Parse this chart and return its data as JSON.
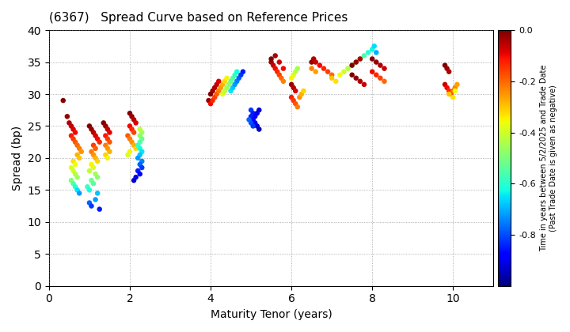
{
  "title": "(6367)   Spread Curve based on Reference Prices",
  "xlabel": "Maturity Tenor (years)",
  "ylabel": "Spread (bp)",
  "colorbar_label_line1": "Time in years between 5/2/2025 and Trade Date",
  "colorbar_label_line2": "(Past Trade Date is given as negative)",
  "xlim": [
    0,
    11
  ],
  "ylim": [
    0,
    40
  ],
  "xticks": [
    0,
    2,
    4,
    6,
    8,
    10
  ],
  "yticks": [
    0,
    5,
    10,
    15,
    20,
    25,
    30,
    35,
    40
  ],
  "cmap": "jet",
  "vmin": -1.0,
  "vmax": 0.0,
  "points": [
    [
      0.35,
      29.0,
      0.0
    ],
    [
      0.45,
      26.5,
      -0.02
    ],
    [
      0.5,
      25.5,
      -0.04
    ],
    [
      0.55,
      25.0,
      -0.06
    ],
    [
      0.6,
      24.5,
      -0.08
    ],
    [
      0.65,
      24.0,
      -0.1
    ],
    [
      0.55,
      23.5,
      -0.12
    ],
    [
      0.6,
      23.0,
      -0.15
    ],
    [
      0.65,
      22.5,
      -0.18
    ],
    [
      0.7,
      22.0,
      -0.2
    ],
    [
      0.75,
      21.5,
      -0.22
    ],
    [
      0.8,
      21.0,
      -0.25
    ],
    [
      0.7,
      20.5,
      -0.28
    ],
    [
      0.75,
      20.0,
      -0.3
    ],
    [
      0.6,
      19.5,
      -0.33
    ],
    [
      0.65,
      19.0,
      -0.36
    ],
    [
      0.55,
      18.5,
      -0.38
    ],
    [
      0.6,
      18.0,
      -0.4
    ],
    [
      0.65,
      17.5,
      -0.43
    ],
    [
      0.7,
      17.0,
      -0.46
    ],
    [
      0.55,
      16.5,
      -0.5
    ],
    [
      0.6,
      16.0,
      -0.55
    ],
    [
      0.65,
      15.5,
      -0.6
    ],
    [
      0.7,
      15.0,
      -0.65
    ],
    [
      0.75,
      14.5,
      -0.72
    ],
    [
      1.0,
      25.0,
      -0.0
    ],
    [
      1.05,
      24.5,
      -0.02
    ],
    [
      1.1,
      24.0,
      -0.05
    ],
    [
      1.15,
      23.5,
      -0.08
    ],
    [
      1.2,
      23.0,
      -0.1
    ],
    [
      1.25,
      22.5,
      -0.13
    ],
    [
      1.1,
      22.0,
      -0.16
    ],
    [
      1.15,
      21.5,
      -0.19
    ],
    [
      1.05,
      21.0,
      -0.22
    ],
    [
      1.1,
      20.5,
      -0.25
    ],
    [
      1.15,
      20.0,
      -0.28
    ],
    [
      1.2,
      19.5,
      -0.32
    ],
    [
      1.05,
      19.0,
      -0.35
    ],
    [
      1.1,
      18.5,
      -0.38
    ],
    [
      1.0,
      18.0,
      -0.42
    ],
    [
      1.15,
      17.5,
      -0.45
    ],
    [
      1.2,
      17.0,
      -0.48
    ],
    [
      1.05,
      16.5,
      -0.52
    ],
    [
      1.1,
      16.0,
      -0.55
    ],
    [
      0.95,
      15.5,
      -0.58
    ],
    [
      1.0,
      15.0,
      -0.62
    ],
    [
      1.2,
      14.5,
      -0.68
    ],
    [
      1.15,
      13.5,
      -0.72
    ],
    [
      1.0,
      13.0,
      -0.78
    ],
    [
      1.05,
      12.5,
      -0.82
    ],
    [
      1.25,
      12.0,
      -0.85
    ],
    [
      1.35,
      25.5,
      -0.0
    ],
    [
      1.4,
      25.0,
      -0.03
    ],
    [
      1.45,
      24.5,
      -0.06
    ],
    [
      1.5,
      24.0,
      -0.09
    ],
    [
      1.4,
      23.5,
      -0.12
    ],
    [
      1.45,
      23.0,
      -0.15
    ],
    [
      1.5,
      22.5,
      -0.18
    ],
    [
      1.4,
      22.0,
      -0.22
    ],
    [
      1.45,
      21.5,
      -0.25
    ],
    [
      1.5,
      21.0,
      -0.28
    ],
    [
      1.4,
      20.5,
      -0.32
    ],
    [
      1.45,
      20.0,
      -0.35
    ],
    [
      2.0,
      27.0,
      -0.0
    ],
    [
      2.05,
      26.5,
      -0.02
    ],
    [
      2.1,
      26.0,
      -0.05
    ],
    [
      2.15,
      25.5,
      -0.08
    ],
    [
      2.0,
      25.0,
      -0.1
    ],
    [
      2.05,
      24.5,
      -0.13
    ],
    [
      2.1,
      24.0,
      -0.16
    ],
    [
      1.95,
      23.5,
      -0.19
    ],
    [
      2.0,
      23.0,
      -0.22
    ],
    [
      2.05,
      22.5,
      -0.25
    ],
    [
      2.1,
      22.0,
      -0.28
    ],
    [
      2.15,
      21.5,
      -0.32
    ],
    [
      2.0,
      21.0,
      -0.35
    ],
    [
      1.95,
      20.5,
      -0.38
    ],
    [
      2.25,
      24.5,
      -0.42
    ],
    [
      2.3,
      24.0,
      -0.45
    ],
    [
      2.25,
      23.5,
      -0.48
    ],
    [
      2.3,
      23.0,
      -0.52
    ],
    [
      2.25,
      22.5,
      -0.55
    ],
    [
      2.2,
      22.0,
      -0.58
    ],
    [
      2.25,
      21.5,
      -0.62
    ],
    [
      2.3,
      21.0,
      -0.65
    ],
    [
      2.25,
      20.5,
      -0.68
    ],
    [
      2.2,
      20.0,
      -0.72
    ],
    [
      2.3,
      19.5,
      -0.75
    ],
    [
      2.25,
      19.0,
      -0.78
    ],
    [
      2.3,
      18.5,
      -0.82
    ],
    [
      2.2,
      18.0,
      -0.85
    ],
    [
      2.25,
      17.5,
      -0.88
    ],
    [
      2.15,
      17.0,
      -0.9
    ],
    [
      2.1,
      16.5,
      -0.93
    ],
    [
      3.95,
      29.0,
      -0.02
    ],
    [
      4.0,
      30.0,
      -0.0
    ],
    [
      4.05,
      30.5,
      -0.02
    ],
    [
      4.1,
      31.0,
      -0.04
    ],
    [
      4.15,
      31.5,
      -0.06
    ],
    [
      4.2,
      32.0,
      -0.08
    ],
    [
      4.0,
      28.5,
      -0.1
    ],
    [
      4.05,
      29.0,
      -0.13
    ],
    [
      4.1,
      29.5,
      -0.16
    ],
    [
      4.15,
      30.0,
      -0.19
    ],
    [
      4.2,
      30.5,
      -0.22
    ],
    [
      4.25,
      31.0,
      -0.25
    ],
    [
      4.3,
      31.5,
      -0.28
    ],
    [
      4.35,
      32.0,
      -0.32
    ],
    [
      4.4,
      32.5,
      -0.35
    ],
    [
      4.3,
      30.0,
      -0.38
    ],
    [
      4.35,
      30.5,
      -0.42
    ],
    [
      4.4,
      31.0,
      -0.45
    ],
    [
      4.45,
      31.5,
      -0.48
    ],
    [
      4.5,
      32.0,
      -0.52
    ],
    [
      4.55,
      32.5,
      -0.55
    ],
    [
      4.6,
      33.0,
      -0.58
    ],
    [
      4.65,
      33.5,
      -0.62
    ],
    [
      4.5,
      30.5,
      -0.65
    ],
    [
      4.55,
      31.0,
      -0.68
    ],
    [
      4.6,
      31.5,
      -0.72
    ],
    [
      4.65,
      32.0,
      -0.75
    ],
    [
      4.7,
      32.5,
      -0.78
    ],
    [
      4.75,
      33.0,
      -0.82
    ],
    [
      4.8,
      33.5,
      -0.85
    ],
    [
      5.0,
      27.5,
      -0.82
    ],
    [
      5.05,
      27.0,
      -0.85
    ],
    [
      5.1,
      26.5,
      -0.88
    ],
    [
      5.15,
      27.0,
      -0.9
    ],
    [
      5.2,
      27.5,
      -0.92
    ],
    [
      5.0,
      26.5,
      -0.85
    ],
    [
      5.05,
      26.0,
      -0.88
    ],
    [
      5.1,
      25.5,
      -0.9
    ],
    [
      5.15,
      25.0,
      -0.92
    ],
    [
      5.2,
      24.5,
      -0.95
    ],
    [
      5.0,
      25.5,
      -0.8
    ],
    [
      5.05,
      25.0,
      -0.82
    ],
    [
      4.95,
      26.0,
      -0.78
    ],
    [
      5.5,
      35.0,
      -0.03
    ],
    [
      5.55,
      34.5,
      -0.06
    ],
    [
      5.6,
      34.0,
      -0.1
    ],
    [
      5.65,
      33.5,
      -0.13
    ],
    [
      5.7,
      33.0,
      -0.16
    ],
    [
      5.75,
      32.5,
      -0.2
    ],
    [
      5.8,
      32.0,
      -0.23
    ],
    [
      5.5,
      35.5,
      -0.01
    ],
    [
      5.6,
      36.0,
      -0.04
    ],
    [
      5.7,
      35.0,
      -0.07
    ],
    [
      5.8,
      34.0,
      -0.1
    ],
    [
      6.0,
      31.5,
      -0.02
    ],
    [
      6.05,
      31.0,
      -0.05
    ],
    [
      6.1,
      30.5,
      -0.08
    ],
    [
      6.0,
      29.5,
      -0.12
    ],
    [
      6.05,
      29.0,
      -0.15
    ],
    [
      6.1,
      28.5,
      -0.18
    ],
    [
      6.15,
      28.0,
      -0.22
    ],
    [
      6.2,
      29.5,
      -0.25
    ],
    [
      6.25,
      30.0,
      -0.28
    ],
    [
      6.3,
      30.5,
      -0.32
    ],
    [
      6.0,
      32.5,
      -0.35
    ],
    [
      6.05,
      33.0,
      -0.38
    ],
    [
      6.1,
      33.5,
      -0.42
    ],
    [
      6.15,
      34.0,
      -0.45
    ],
    [
      6.5,
      35.0,
      -0.02
    ],
    [
      6.55,
      35.5,
      -0.04
    ],
    [
      6.6,
      35.0,
      -0.07
    ],
    [
      6.7,
      34.5,
      -0.1
    ],
    [
      6.8,
      34.0,
      -0.13
    ],
    [
      6.9,
      33.5,
      -0.16
    ],
    [
      7.0,
      33.0,
      -0.2
    ],
    [
      6.5,
      34.0,
      -0.23
    ],
    [
      6.6,
      33.5,
      -0.26
    ],
    [
      7.0,
      32.5,
      -0.3
    ],
    [
      7.1,
      32.0,
      -0.33
    ],
    [
      7.2,
      33.0,
      -0.36
    ],
    [
      7.3,
      33.5,
      -0.4
    ],
    [
      7.4,
      34.0,
      -0.43
    ],
    [
      7.5,
      34.5,
      -0.46
    ],
    [
      7.6,
      35.0,
      -0.5
    ],
    [
      7.7,
      35.5,
      -0.53
    ],
    [
      7.8,
      36.0,
      -0.56
    ],
    [
      7.9,
      36.5,
      -0.6
    ],
    [
      8.0,
      37.0,
      -0.63
    ],
    [
      8.05,
      37.5,
      -0.66
    ],
    [
      8.1,
      36.5,
      -0.7
    ],
    [
      7.5,
      33.0,
      -0.0
    ],
    [
      7.6,
      32.5,
      -0.02
    ],
    [
      7.7,
      32.0,
      -0.04
    ],
    [
      7.8,
      31.5,
      -0.07
    ],
    [
      7.5,
      34.5,
      -0.0
    ],
    [
      7.6,
      35.0,
      -0.02
    ],
    [
      7.7,
      35.5,
      -0.04
    ],
    [
      8.0,
      35.5,
      -0.0
    ],
    [
      8.1,
      35.0,
      -0.02
    ],
    [
      8.2,
      34.5,
      -0.04
    ],
    [
      8.3,
      34.0,
      -0.07
    ],
    [
      8.0,
      33.5,
      -0.1
    ],
    [
      8.1,
      33.0,
      -0.13
    ],
    [
      8.2,
      32.5,
      -0.16
    ],
    [
      8.3,
      32.0,
      -0.2
    ],
    [
      9.8,
      34.5,
      -0.0
    ],
    [
      9.85,
      34.0,
      -0.02
    ],
    [
      9.9,
      33.5,
      -0.04
    ],
    [
      9.8,
      31.5,
      -0.07
    ],
    [
      9.85,
      31.0,
      -0.1
    ],
    [
      9.9,
      30.5,
      -0.13
    ],
    [
      9.95,
      30.0,
      -0.16
    ],
    [
      10.0,
      30.5,
      -0.2
    ],
    [
      10.05,
      31.0,
      -0.23
    ],
    [
      10.1,
      31.5,
      -0.26
    ],
    [
      9.9,
      30.0,
      -0.3
    ],
    [
      10.0,
      29.5,
      -0.33
    ],
    [
      10.05,
      30.5,
      -0.36
    ]
  ]
}
